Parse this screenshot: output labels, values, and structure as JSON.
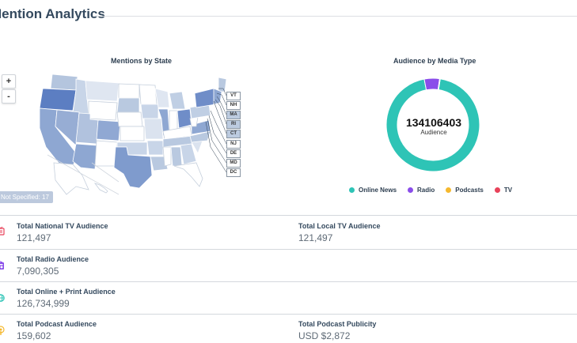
{
  "section": {
    "title": "Mention Analytics"
  },
  "map": {
    "title": "Mentions by State",
    "zoom_in_label": "+",
    "zoom_out_label": "-",
    "not_specified": "Not Specified: 17",
    "northeast_boxes": [
      "VT",
      "NH",
      "MA",
      "RI",
      "CT",
      "NJ",
      "DE",
      "MD",
      "DC"
    ]
  },
  "donut": {
    "title": "Audience by Media Type",
    "total": "134106403",
    "sublabel": "Audience"
  },
  "chart_data": {
    "type": "pie",
    "title": "Audience by Media Type",
    "categories": [
      "Online News",
      "Radio",
      "Podcasts",
      "TV"
    ],
    "values": [
      126734999,
      7090305,
      159602,
      121497
    ],
    "colors": [
      "#2ec4b6",
      "#8a4dea",
      "#f5b82e",
      "#e8425a"
    ],
    "legend": "bottom"
  },
  "metrics": {
    "national_tv": {
      "label": "Total National TV Audience",
      "value": "121,497",
      "icon": "tv-icon",
      "color": "#e8425a"
    },
    "local_tv": {
      "label": "Total Local TV Audience",
      "value": "121,497"
    },
    "radio": {
      "label": "Total Radio Audience",
      "value": "7,090,305",
      "icon": "radio-icon",
      "color": "#8a4dea"
    },
    "online_print": {
      "label": "Total Online + Print Audience",
      "value": "126,734,999",
      "icon": "globe-icon",
      "color": "#2ec4b6"
    },
    "podcast": {
      "label": "Total Podcast Audience",
      "value": "159,602",
      "icon": "podcast-icon",
      "color": "#f5b82e"
    },
    "podcast_publicity": {
      "label": "Total Podcast Publicity",
      "value": "USD $2,872"
    }
  }
}
